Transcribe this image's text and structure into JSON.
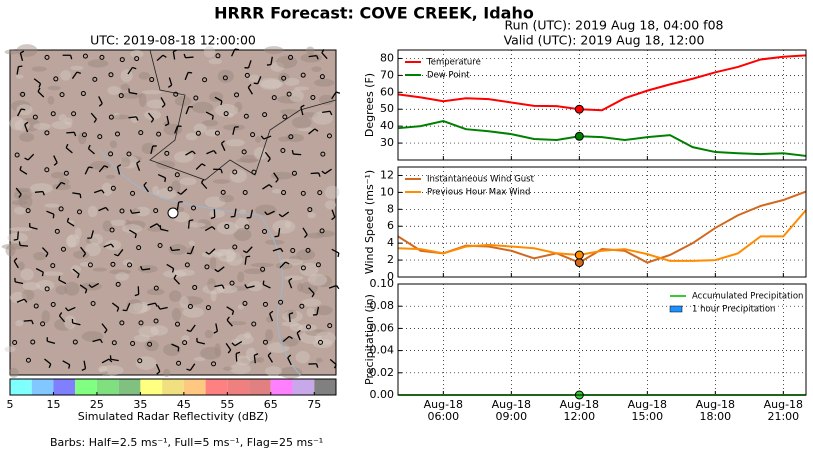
{
  "title": "HRRR Forecast: COVE CREEK, Idaho",
  "map": {
    "title": "UTC: 2019-08-18 12:00:00",
    "note": "Barbs: Half=2.5 ms⁻¹, Full=5 ms⁻¹, Flag=25 ms⁻¹"
  },
  "run": "Run (UTC): 2019 Aug 18, 04:00 f08",
  "valid": "Valid (UTC): 2019 Aug 18, 12:00",
  "chart_data": [
    {
      "type": "colorbar",
      "xlabel": "Simulated Radar Reflectivity (dBZ)",
      "bins": [
        5,
        10,
        15,
        20,
        25,
        30,
        35,
        40,
        45,
        50,
        55,
        60,
        65,
        70,
        75,
        80
      ],
      "colors": [
        "#80ffff",
        "#80c8ff",
        "#8080ff",
        "#80ff80",
        "#80e080",
        "#80c080",
        "#ffff80",
        "#f0e080",
        "#ffc880",
        "#ff8080",
        "#f08080",
        "#e08080",
        "#ff80ff",
        "#c8a8e8",
        "#808080"
      ],
      "xlim": [
        5,
        80
      ],
      "xticks": [
        5,
        15,
        25,
        35,
        45,
        55,
        65,
        75
      ]
    },
    {
      "type": "line",
      "ylabel": "Degrees (F)",
      "legend": "upper left",
      "grid": true,
      "highlight_x": 12,
      "x": [
        4,
        5,
        6,
        7,
        8,
        9,
        10,
        11,
        12,
        13,
        14,
        15,
        16,
        17,
        18,
        19,
        20,
        21,
        22
      ],
      "xlim": [
        4,
        22
      ],
      "xticks": [
        6,
        9,
        12,
        15,
        18,
        21
      ],
      "ylim": [
        20,
        85
      ],
      "yticks": [
        30,
        40,
        50,
        60,
        70,
        80
      ],
      "series": [
        {
          "name": "Temperature",
          "color": "#ff0000",
          "values": [
            58.8,
            57,
            54.7,
            56.5,
            56,
            54,
            52,
            51.8,
            50,
            49.4,
            56.5,
            61,
            64.7,
            68,
            71.8,
            75,
            79.4,
            81,
            81.8
          ]
        },
        {
          "name": "Dew Point",
          "color": "#008000",
          "values": [
            38.8,
            40,
            43,
            38.2,
            37,
            35.3,
            32.4,
            31.8,
            34,
            33.5,
            31.8,
            33.5,
            34.7,
            27.6,
            24.7,
            24,
            23.5,
            24,
            22.4
          ]
        }
      ]
    },
    {
      "type": "line",
      "ylabel": "Wind Speed (ms⁻¹)",
      "legend": "upper left",
      "grid": true,
      "highlight_x": 12,
      "x": [
        4,
        5,
        6,
        7,
        8,
        9,
        10,
        11,
        12,
        13,
        14,
        15,
        16,
        17,
        18,
        19,
        20,
        21,
        22
      ],
      "xlim": [
        4,
        22
      ],
      "xticks": [
        6,
        9,
        12,
        15,
        18,
        21
      ],
      "ylim": [
        0,
        13
      ],
      "yticks": [
        0,
        2,
        4,
        6,
        8,
        10,
        12
      ],
      "series": [
        {
          "name": "Instantaneous Wind Gust",
          "color": "#d2691e",
          "values": [
            4.8,
            3.1,
            2.8,
            3.7,
            3.6,
            3.1,
            2.2,
            2.8,
            1.7,
            3.3,
            3.1,
            1.7,
            2.6,
            4.0,
            5.8,
            7.3,
            8.4,
            9.1,
            10.1
          ]
        },
        {
          "name": "Previous Hour Max Wind",
          "color": "#ff8c00",
          "values": [
            3.4,
            3.3,
            2.8,
            3.6,
            3.8,
            3.6,
            3.4,
            2.8,
            2.6,
            3.1,
            3.3,
            2.7,
            1.9,
            1.9,
            2.0,
            2.8,
            4.8,
            4.8,
            7.9
          ]
        }
      ]
    },
    {
      "type": "line",
      "ylabel": "Precipitation (in)",
      "legend": "upper right",
      "grid": true,
      "highlight_x": 12,
      "x": [
        4,
        5,
        6,
        7,
        8,
        9,
        10,
        11,
        12,
        13,
        14,
        15,
        16,
        17,
        18,
        19,
        20,
        21,
        22
      ],
      "xlim": [
        4,
        22
      ],
      "xticks": [
        {
          "value": 6,
          "label": "Aug-18\n06:00"
        },
        {
          "value": 9,
          "label": "Aug-18\n09:00"
        },
        {
          "value": 12,
          "label": "Aug-18\n12:00"
        },
        {
          "value": 15,
          "label": "Aug-18\n15:00"
        },
        {
          "value": 18,
          "label": "Aug-18\n18:00"
        },
        {
          "value": 21,
          "label": "Aug-18\n21:00"
        }
      ],
      "ylim": [
        0,
        0.1
      ],
      "yticks": [
        {
          "value": 0,
          "label": "0.00"
        },
        {
          "value": 0.02,
          "label": "0.02"
        },
        {
          "value": 0.04,
          "label": "0.04"
        },
        {
          "value": 0.06,
          "label": "0.06"
        },
        {
          "value": 0.08,
          "label": "0.08"
        },
        {
          "value": 0.1,
          "label": "0.10"
        }
      ],
      "series": [
        {
          "name": "Accumulated Precipitation",
          "color": "#33cc33",
          "values": [
            0,
            0,
            0,
            0,
            0,
            0,
            0,
            0,
            0,
            0,
            0,
            0,
            0,
            0,
            0,
            0,
            0,
            0,
            0
          ]
        },
        {
          "name": "1 hour Precipitation",
          "type": "bar",
          "color": "#1e90ff",
          "values": [
            0,
            0,
            0,
            0,
            0,
            0,
            0,
            0,
            0,
            0,
            0,
            0,
            0,
            0,
            0,
            0,
            0,
            0,
            0
          ]
        }
      ]
    }
  ]
}
